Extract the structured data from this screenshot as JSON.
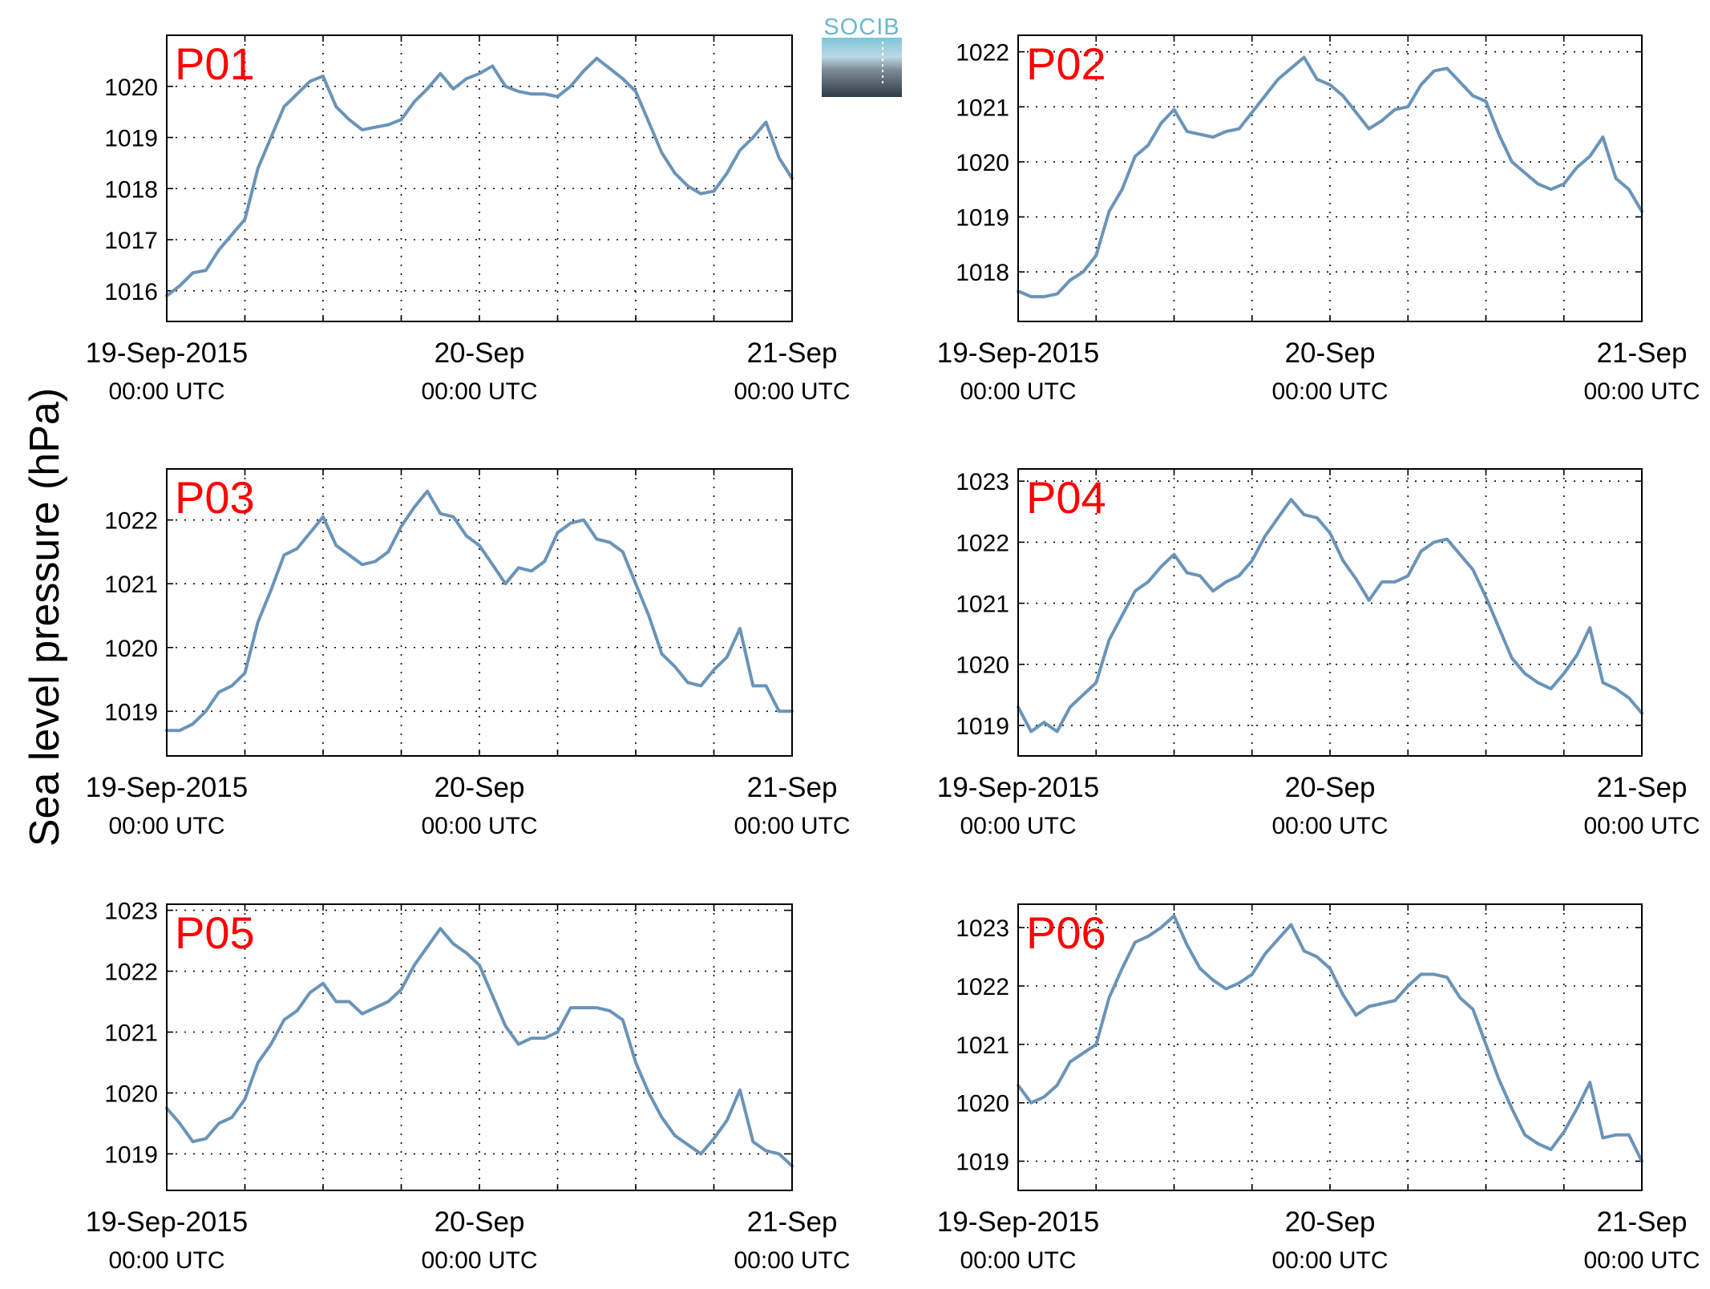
{
  "ylabel": "Sea level pressure (hPa)",
  "logo": {
    "text": "SOCIB",
    "text_color": "#6ab8d2",
    "top_color": "#7fc4da",
    "bottom_color": "#2e3c46"
  },
  "colors": {
    "line": "#6a94b8",
    "title": "#ff0000",
    "grid": "#000000",
    "axes": "#000000"
  },
  "chart_data": [
    {
      "type": "line",
      "title": "P01",
      "xlabel": "",
      "ylabel": "Sea level pressure (hPa)",
      "xlim": [
        0,
        48
      ],
      "xunit": "hours since 19-Sep-2015 00:00 UTC",
      "ylim": [
        1015.4,
        1021.0
      ],
      "yticks": [
        1016,
        1017,
        1018,
        1019,
        1020
      ],
      "xticks": [
        {
          "x": 0,
          "date": "19-Sep-2015",
          "time": "00:00 UTC"
        },
        {
          "x": 24,
          "date": "20-Sep",
          "time": "00:00 UTC"
        },
        {
          "x": 48,
          "date": "21-Sep",
          "time": "00:00 UTC"
        }
      ],
      "grid": true,
      "x": [
        0,
        1,
        2,
        3,
        4,
        5,
        6,
        7,
        8,
        9,
        10,
        11,
        12,
        13,
        14,
        15,
        16,
        17,
        18,
        19,
        20,
        21,
        22,
        23,
        24,
        25,
        26,
        27,
        28,
        29,
        30,
        31,
        32,
        33,
        34,
        35,
        36,
        37,
        38,
        39,
        40,
        41,
        42,
        43,
        44,
        45,
        46,
        47,
        48
      ],
      "values": [
        1015.9,
        1016.1,
        1016.35,
        1016.4,
        1016.8,
        1017.1,
        1017.4,
        1018.4,
        1019.0,
        1019.6,
        1019.85,
        1020.1,
        1020.2,
        1019.6,
        1019.35,
        1019.15,
        1019.2,
        1019.25,
        1019.35,
        1019.7,
        1019.95,
        1020.25,
        1019.95,
        1020.15,
        1020.25,
        1020.4,
        1020.0,
        1019.9,
        1019.85,
        1019.85,
        1019.8,
        1020.0,
        1020.3,
        1020.55,
        1020.35,
        1020.15,
        1019.9,
        1019.3,
        1018.7,
        1018.3,
        1018.05,
        1017.9,
        1017.95,
        1018.3,
        1018.75,
        1019.0,
        1019.3,
        1018.6,
        1018.2
      ]
    },
    {
      "type": "line",
      "title": "P02",
      "xlabel": "",
      "ylabel": "Sea level pressure (hPa)",
      "xlim": [
        0,
        48
      ],
      "xunit": "hours since 19-Sep-2015 00:00 UTC",
      "ylim": [
        1017.1,
        1022.3
      ],
      "yticks": [
        1018,
        1019,
        1020,
        1021,
        1022
      ],
      "xticks": [
        {
          "x": 0,
          "date": "19-Sep-2015",
          "time": "00:00 UTC"
        },
        {
          "x": 24,
          "date": "20-Sep",
          "time": "00:00 UTC"
        },
        {
          "x": 48,
          "date": "21-Sep",
          "time": "00:00 UTC"
        }
      ],
      "grid": true,
      "x": [
        0,
        1,
        2,
        3,
        4,
        5,
        6,
        7,
        8,
        9,
        10,
        11,
        12,
        13,
        14,
        15,
        16,
        17,
        18,
        19,
        20,
        21,
        22,
        23,
        24,
        25,
        26,
        27,
        28,
        29,
        30,
        31,
        32,
        33,
        34,
        35,
        36,
        37,
        38,
        39,
        40,
        41,
        42,
        43,
        44,
        45,
        46,
        47,
        48
      ],
      "values": [
        1017.65,
        1017.55,
        1017.55,
        1017.6,
        1017.85,
        1018.0,
        1018.3,
        1019.1,
        1019.5,
        1020.1,
        1020.3,
        1020.7,
        1020.95,
        1020.55,
        1020.5,
        1020.45,
        1020.55,
        1020.6,
        1020.9,
        1021.2,
        1021.5,
        1021.7,
        1021.9,
        1021.5,
        1021.4,
        1021.2,
        1020.9,
        1020.6,
        1020.75,
        1020.95,
        1021.0,
        1021.4,
        1021.65,
        1021.7,
        1021.45,
        1021.2,
        1021.1,
        1020.5,
        1020.0,
        1019.8,
        1019.6,
        1019.5,
        1019.6,
        1019.9,
        1020.1,
        1020.45,
        1019.7,
        1019.5,
        1019.1
      ]
    },
    {
      "type": "line",
      "title": "P03",
      "xlabel": "",
      "ylabel": "Sea level pressure (hPa)",
      "xlim": [
        0,
        48
      ],
      "xunit": "hours since 19-Sep-2015 00:00 UTC",
      "ylim": [
        1018.3,
        1022.8
      ],
      "yticks": [
        1019,
        1020,
        1021,
        1022
      ],
      "xticks": [
        {
          "x": 0,
          "date": "19-Sep-2015",
          "time": "00:00 UTC"
        },
        {
          "x": 24,
          "date": "20-Sep",
          "time": "00:00 UTC"
        },
        {
          "x": 48,
          "date": "21-Sep",
          "time": "00:00 UTC"
        }
      ],
      "grid": true,
      "x": [
        0,
        1,
        2,
        3,
        4,
        5,
        6,
        7,
        8,
        9,
        10,
        11,
        12,
        13,
        14,
        15,
        16,
        17,
        18,
        19,
        20,
        21,
        22,
        23,
        24,
        25,
        26,
        27,
        28,
        29,
        30,
        31,
        32,
        33,
        34,
        35,
        36,
        37,
        38,
        39,
        40,
        41,
        42,
        43,
        44,
        45,
        46,
        47,
        48
      ],
      "values": [
        1018.7,
        1018.7,
        1018.8,
        1019.0,
        1019.3,
        1019.4,
        1019.6,
        1020.4,
        1020.9,
        1021.45,
        1021.55,
        1021.8,
        1022.05,
        1021.6,
        1021.45,
        1021.3,
        1021.35,
        1021.5,
        1021.9,
        1022.2,
        1022.45,
        1022.1,
        1022.05,
        1021.75,
        1021.6,
        1021.3,
        1021.0,
        1021.25,
        1021.2,
        1021.35,
        1021.8,
        1021.95,
        1022.0,
        1021.7,
        1021.65,
        1021.5,
        1021.0,
        1020.5,
        1019.9,
        1019.7,
        1019.45,
        1019.4,
        1019.65,
        1019.85,
        1020.3,
        1019.4,
        1019.4,
        1019.0,
        1019.0
      ]
    },
    {
      "type": "line",
      "title": "P04",
      "xlabel": "",
      "ylabel": "Sea level pressure (hPa)",
      "xlim": [
        0,
        48
      ],
      "xunit": "hours since 19-Sep-2015 00:00 UTC",
      "ylim": [
        1018.5,
        1023.2
      ],
      "yticks": [
        1019,
        1020,
        1021,
        1022,
        1023
      ],
      "xticks": [
        {
          "x": 0,
          "date": "19-Sep-2015",
          "time": "00:00 UTC"
        },
        {
          "x": 24,
          "date": "20-Sep",
          "time": "00:00 UTC"
        },
        {
          "x": 48,
          "date": "21-Sep",
          "time": "00:00 UTC"
        }
      ],
      "grid": true,
      "x": [
        0,
        1,
        2,
        3,
        4,
        5,
        6,
        7,
        8,
        9,
        10,
        11,
        12,
        13,
        14,
        15,
        16,
        17,
        18,
        19,
        20,
        21,
        22,
        23,
        24,
        25,
        26,
        27,
        28,
        29,
        30,
        31,
        32,
        33,
        34,
        35,
        36,
        37,
        38,
        39,
        40,
        41,
        42,
        43,
        44,
        45,
        46,
        47,
        48
      ],
      "values": [
        1019.3,
        1018.9,
        1019.05,
        1018.9,
        1019.3,
        1019.5,
        1019.7,
        1020.4,
        1020.8,
        1021.2,
        1021.35,
        1021.6,
        1021.8,
        1021.5,
        1021.45,
        1021.2,
        1021.35,
        1021.45,
        1021.7,
        1022.1,
        1022.4,
        1022.7,
        1022.45,
        1022.4,
        1022.15,
        1021.7,
        1021.4,
        1021.05,
        1021.35,
        1021.35,
        1021.45,
        1021.85,
        1022.0,
        1022.05,
        1021.8,
        1021.55,
        1021.1,
        1020.6,
        1020.1,
        1019.85,
        1019.7,
        1019.6,
        1019.85,
        1020.15,
        1020.6,
        1019.7,
        1019.6,
        1019.45,
        1019.2
      ]
    },
    {
      "type": "line",
      "title": "P05",
      "xlabel": "",
      "ylabel": "Sea level pressure (hPa)",
      "xlim": [
        0,
        48
      ],
      "xunit": "hours since 19-Sep-2015 00:00 UTC",
      "ylim": [
        1018.4,
        1023.1
      ],
      "yticks": [
        1019,
        1020,
        1021,
        1022,
        1023
      ],
      "xticks": [
        {
          "x": 0,
          "date": "19-Sep-2015",
          "time": "00:00 UTC"
        },
        {
          "x": 24,
          "date": "20-Sep",
          "time": "00:00 UTC"
        },
        {
          "x": 48,
          "date": "21-Sep",
          "time": "00:00 UTC"
        }
      ],
      "grid": true,
      "x": [
        0,
        1,
        2,
        3,
        4,
        5,
        6,
        7,
        8,
        9,
        10,
        11,
        12,
        13,
        14,
        15,
        16,
        17,
        18,
        19,
        20,
        21,
        22,
        23,
        24,
        25,
        26,
        27,
        28,
        29,
        30,
        31,
        32,
        33,
        34,
        35,
        36,
        37,
        38,
        39,
        40,
        41,
        42,
        43,
        44,
        45,
        46,
        47,
        48
      ],
      "values": [
        1019.75,
        1019.5,
        1019.2,
        1019.25,
        1019.5,
        1019.6,
        1019.9,
        1020.5,
        1020.8,
        1021.2,
        1021.35,
        1021.65,
        1021.8,
        1021.5,
        1021.5,
        1021.3,
        1021.4,
        1021.5,
        1021.7,
        1022.1,
        1022.4,
        1022.7,
        1022.45,
        1022.3,
        1022.1,
        1021.6,
        1021.1,
        1020.8,
        1020.9,
        1020.9,
        1021.0,
        1021.4,
        1021.4,
        1021.4,
        1021.35,
        1021.2,
        1020.5,
        1020.0,
        1019.6,
        1019.3,
        1019.15,
        1019.0,
        1019.25,
        1019.55,
        1020.05,
        1019.2,
        1019.05,
        1019.0,
        1018.8
      ]
    },
    {
      "type": "line",
      "title": "P06",
      "xlabel": "",
      "ylabel": "Sea level pressure (hPa)",
      "xlim": [
        0,
        48
      ],
      "xunit": "hours since 19-Sep-2015 00:00 UTC",
      "ylim": [
        1018.5,
        1023.4
      ],
      "yticks": [
        1019,
        1020,
        1021,
        1022,
        1023
      ],
      "xticks": [
        {
          "x": 0,
          "date": "19-Sep-2015",
          "time": "00:00 UTC"
        },
        {
          "x": 24,
          "date": "20-Sep",
          "time": "00:00 UTC"
        },
        {
          "x": 48,
          "date": "21-Sep",
          "time": "00:00 UTC"
        }
      ],
      "grid": true,
      "x": [
        0,
        1,
        2,
        3,
        4,
        5,
        6,
        7,
        8,
        9,
        10,
        11,
        12,
        13,
        14,
        15,
        16,
        17,
        18,
        19,
        20,
        21,
        22,
        23,
        24,
        25,
        26,
        27,
        28,
        29,
        30,
        31,
        32,
        33,
        34,
        35,
        36,
        37,
        38,
        39,
        40,
        41,
        42,
        43,
        44,
        45,
        46,
        47,
        48
      ],
      "values": [
        1020.3,
        1020.0,
        1020.1,
        1020.3,
        1020.7,
        1020.85,
        1021.0,
        1021.8,
        1022.3,
        1022.75,
        1022.85,
        1023.0,
        1023.2,
        1022.7,
        1022.3,
        1022.1,
        1021.95,
        1022.05,
        1022.2,
        1022.55,
        1022.8,
        1023.05,
        1022.6,
        1022.5,
        1022.3,
        1021.85,
        1021.5,
        1021.65,
        1021.7,
        1021.75,
        1022.0,
        1022.2,
        1022.2,
        1022.15,
        1021.8,
        1021.6,
        1021.0,
        1020.4,
        1019.9,
        1019.45,
        1019.3,
        1019.2,
        1019.5,
        1019.9,
        1020.35,
        1019.4,
        1019.45,
        1019.45,
        1019.0
      ]
    }
  ]
}
